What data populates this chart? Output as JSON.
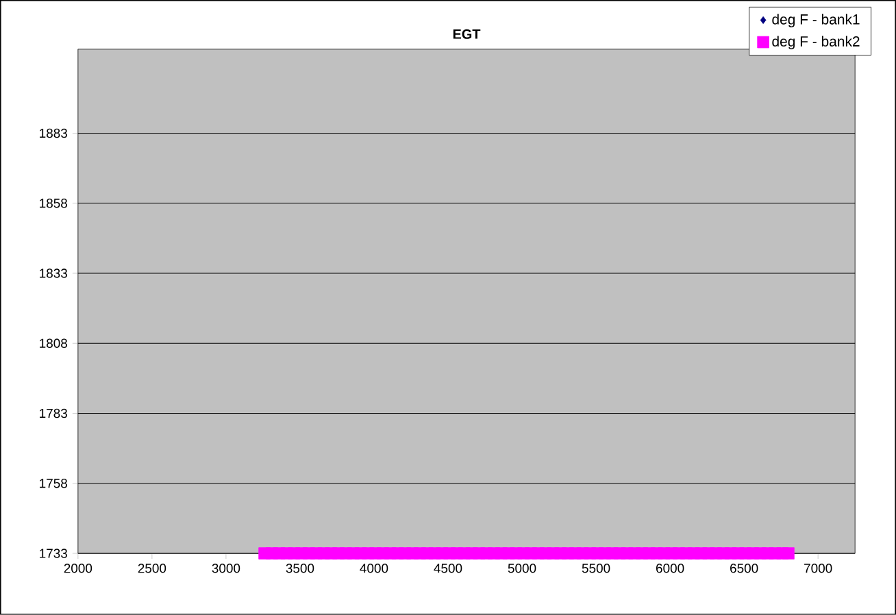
{
  "chart_data": {
    "type": "scatter",
    "title": "EGT",
    "xlim": [
      2000,
      7250
    ],
    "xticks": [
      2000,
      2500,
      3000,
      3500,
      4000,
      4500,
      5000,
      5500,
      6000,
      6500,
      7000
    ],
    "ylim": [
      1733,
      1913
    ],
    "yticks": [
      1733,
      1758,
      1783,
      1808,
      1833,
      1858,
      1883
    ],
    "grid": "y",
    "legend": "top right",
    "series": [
      {
        "name": "deg F - bank1",
        "color": "#000080",
        "marker": "diamond"
      },
      {
        "name": "deg F - bank2",
        "color": "#ff00ff",
        "marker": "square",
        "x": [
          3260,
          3310,
          3360,
          3410,
          3460,
          3510,
          3560,
          3610,
          3660,
          3710,
          3760,
          3810,
          3860,
          3910,
          3960,
          4010,
          4060,
          4110,
          4160,
          4210,
          4260,
          4310,
          4360,
          4410,
          4460,
          4510,
          4560,
          4610,
          4660,
          4710,
          4760,
          4810,
          4860,
          4910,
          4960,
          5010,
          5060,
          5110,
          5160,
          5210,
          5260,
          5310,
          5360,
          5410,
          5460,
          5510,
          5560,
          5610,
          5660,
          5710,
          5760,
          5810,
          5860,
          5910,
          5960,
          6010,
          6060,
          6110,
          6160,
          6210,
          6260,
          6310,
          6360,
          6410,
          6460,
          6510,
          6560,
          6610,
          6660,
          6710,
          6760,
          6800
        ],
        "values": [
          1733,
          1733,
          1733,
          1733,
          1733,
          1733,
          1733,
          1733,
          1733,
          1733,
          1733,
          1733,
          1733,
          1733,
          1733,
          1733,
          1733,
          1733,
          1733,
          1733,
          1733,
          1733,
          1733,
          1733,
          1733,
          1733,
          1733,
          1733,
          1733,
          1733,
          1733,
          1733,
          1733,
          1733,
          1733,
          1733,
          1733,
          1733,
          1733,
          1733,
          1733,
          1733,
          1733,
          1733,
          1733,
          1733,
          1733,
          1733,
          1733,
          1733,
          1733,
          1733,
          1733,
          1733,
          1733,
          1733,
          1733,
          1733,
          1733,
          1733,
          1733,
          1733,
          1733,
          1733,
          1733,
          1733,
          1733,
          1733,
          1733,
          1733,
          1733,
          1733
        ]
      }
    ]
  }
}
